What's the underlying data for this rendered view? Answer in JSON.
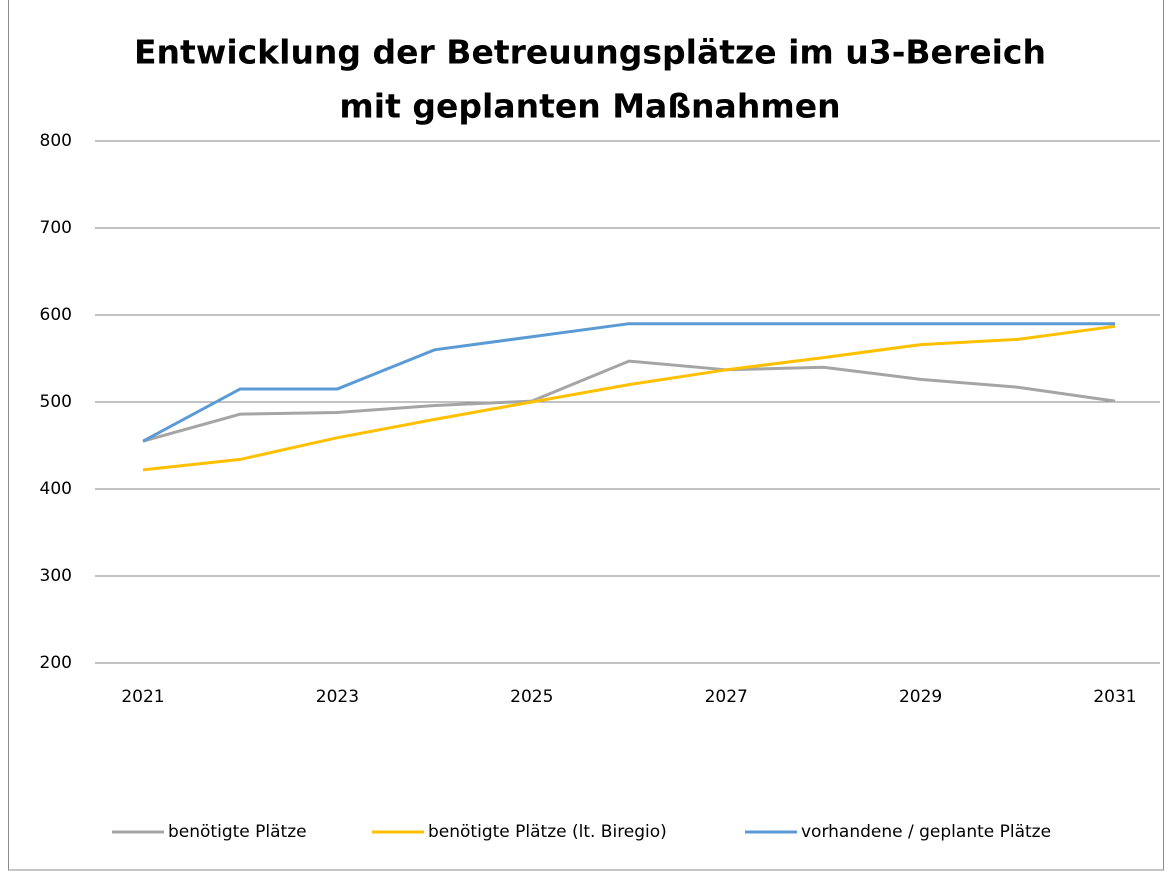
{
  "chart_data": {
    "type": "line",
    "title": [
      "Entwicklung der Betreuungsplätze im u3-Bereich",
      "mit geplanten Maßnahmen"
    ],
    "x": [
      2021,
      2022,
      2023,
      2024,
      2025,
      2026,
      2027,
      2028,
      2029,
      2030,
      2031
    ],
    "series": [
      {
        "name": "benötigte Plätze",
        "color": "#a5a5a5",
        "values": [
          455,
          486,
          488,
          496,
          501,
          547,
          537,
          540,
          526,
          517,
          501
        ]
      },
      {
        "name": "benötigte Plätze (lt. Biregio)",
        "color": "#ffc000",
        "values": [
          422,
          434,
          459,
          480,
          500,
          520,
          537,
          551,
          566,
          572,
          587
        ]
      },
      {
        "name": "vorhandene / geplante Plätze",
        "color": "#5b9bd5",
        "values": [
          455,
          515,
          515,
          560,
          575,
          590,
          590,
          590,
          590,
          590,
          590
        ]
      }
    ],
    "xlim": [
      2021,
      2031
    ],
    "xticks": [
      2021,
      2023,
      2025,
      2027,
      2029,
      2031
    ],
    "ylim": [
      200,
      800
    ],
    "yticks": [
      200,
      300,
      400,
      500,
      600,
      700,
      800
    ],
    "grid": true,
    "legend": "bottom"
  }
}
